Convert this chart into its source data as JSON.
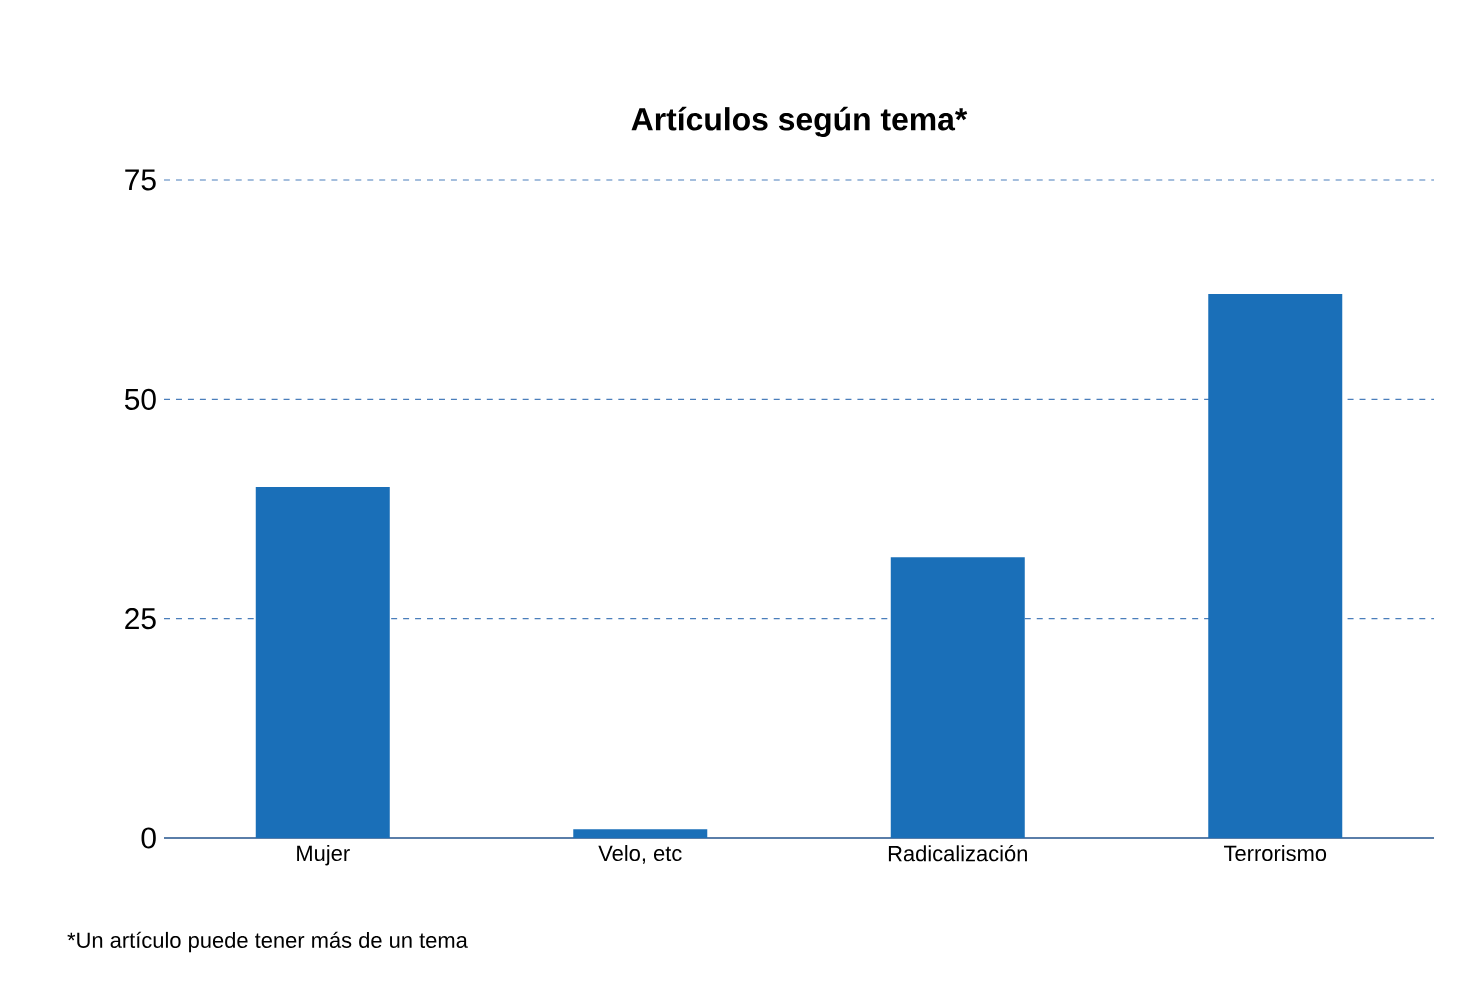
{
  "chart_data": {
    "type": "bar",
    "title": "Artículos según tema*",
    "categories": [
      "Mujer",
      "Velo, etc",
      "Radicalización",
      "Terrorismo"
    ],
    "values": [
      40,
      1,
      32,
      62
    ],
    "color": "#1a6fb8",
    "ylim": [
      0,
      75
    ],
    "yticks": [
      0,
      25,
      50,
      75
    ],
    "grid": "y",
    "annotations": [
      "*Un artículo puede tener más de un tema"
    ]
  }
}
